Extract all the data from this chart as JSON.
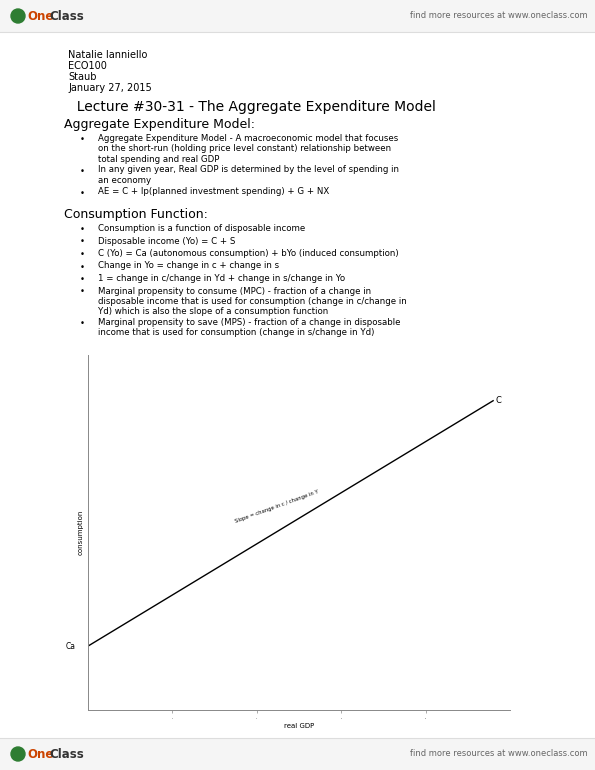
{
  "bg_color": "#ffffff",
  "page_width": 5.95,
  "page_height": 7.7,
  "header_right_text": "find more resources at www.oneclass.com",
  "footer_right_text": "find more resources at www.oneclass.com",
  "author_lines": [
    "Natalie Ianniello",
    "ECO100",
    "Staub",
    "January 27, 2015"
  ],
  "lecture_title": "  Lecture #30-31 - The Aggregate Expenditure Model",
  "section1_title": "Aggregate Expenditure Model:",
  "section2_title": "Consumption Function:",
  "graph_xlabel": "real GDP",
  "graph_ylabel": "consumption",
  "graph_line_label_C": "C",
  "graph_line_label_slope": "Slope = change in c / change in Y",
  "graph_ca_label": "Ca",
  "line_color": "#000000",
  "text_color": "#000000",
  "header_logo_one_color": "#cc4400",
  "header_logo_class_color": "#333333",
  "header_bg_color": "#f5f5f5",
  "header_sep_color": "#dddddd",
  "oneclass_icon_color": "#2e7d32",
  "author_fontsize": 7.0,
  "lecture_title_fontsize": 10.0,
  "section_title_fontsize": 9.0,
  "bullet_fontsize": 6.2,
  "header_fontsize": 6.0,
  "logo_fontsize": 8.5,
  "graph_label_fontsize": 5.5,
  "graph_axis_label_fontsize": 5.0,
  "s1_bullets": [
    [
      "Aggregate Expenditure Model - A macroeconomic model that focuses\non the short-run (holding price level constant) relationship between\ntotal spending and real GDP",
      3
    ],
    [
      "In any given year, Real GDP is determined by the level of spending in\nan economy",
      2
    ],
    [
      "AE = C + Ip(planned investment spending) + G + NX",
      1
    ]
  ],
  "s2_bullets": [
    [
      "Consumption is a function of disposable income",
      1
    ],
    [
      "Disposable income (Yo) = C + S",
      1
    ],
    [
      "C (Yo) = Ca (autonomous consumption) + bYo (induced consumption)",
      1
    ],
    [
      "Change in Yo = change in c + change in s",
      1
    ],
    [
      "1 = change in c/change in Yd + change in s/change in Yo",
      1
    ],
    [
      "Marginal propensity to consume (MPC) - fraction of a change in\ndisposable income that is used for consumption (change in c/change in\nYd) which is also the slope of a consumption function",
      3
    ],
    [
      "Marginal propensity to save (MPS) - fraction of a change in disposable\nincome that is used for consumption (change in s/change in Yd)",
      2
    ]
  ]
}
